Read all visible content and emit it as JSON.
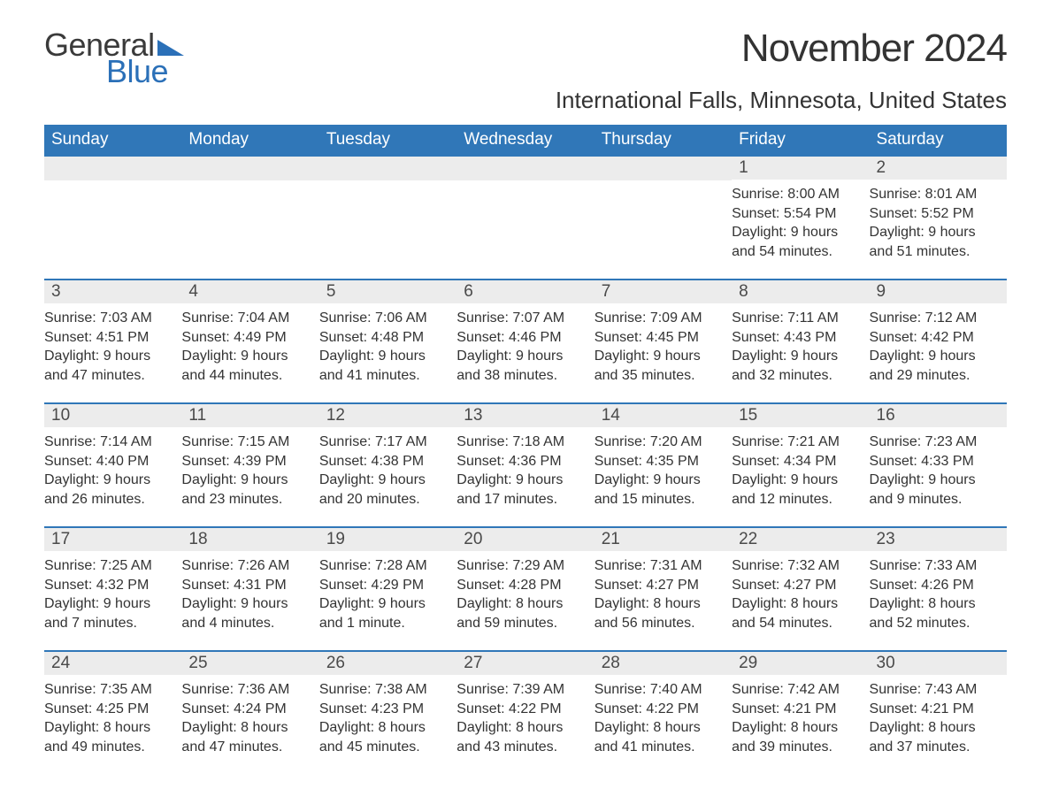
{
  "logo": {
    "text_general": "General",
    "text_blue": "Blue",
    "tri_color": "#2b70b8"
  },
  "title": "November 2024",
  "location": "International Falls, Minnesota, United States",
  "colors": {
    "header_bg": "#3077b8",
    "header_text": "#ffffff",
    "daynum_bg": "#ececec",
    "daynum_text": "#4a4a4a",
    "body_text": "#333333",
    "row_border": "#3077b8"
  },
  "day_headers": [
    "Sunday",
    "Monday",
    "Tuesday",
    "Wednesday",
    "Thursday",
    "Friday",
    "Saturday"
  ],
  "weeks": [
    [
      {
        "day": "",
        "lines": []
      },
      {
        "day": "",
        "lines": []
      },
      {
        "day": "",
        "lines": []
      },
      {
        "day": "",
        "lines": []
      },
      {
        "day": "",
        "lines": []
      },
      {
        "day": "1",
        "lines": [
          "Sunrise: 8:00 AM",
          "Sunset: 5:54 PM",
          "Daylight: 9 hours",
          "and 54 minutes."
        ]
      },
      {
        "day": "2",
        "lines": [
          "Sunrise: 8:01 AM",
          "Sunset: 5:52 PM",
          "Daylight: 9 hours",
          "and 51 minutes."
        ]
      }
    ],
    [
      {
        "day": "3",
        "lines": [
          "Sunrise: 7:03 AM",
          "Sunset: 4:51 PM",
          "Daylight: 9 hours",
          "and 47 minutes."
        ]
      },
      {
        "day": "4",
        "lines": [
          "Sunrise: 7:04 AM",
          "Sunset: 4:49 PM",
          "Daylight: 9 hours",
          "and 44 minutes."
        ]
      },
      {
        "day": "5",
        "lines": [
          "Sunrise: 7:06 AM",
          "Sunset: 4:48 PM",
          "Daylight: 9 hours",
          "and 41 minutes."
        ]
      },
      {
        "day": "6",
        "lines": [
          "Sunrise: 7:07 AM",
          "Sunset: 4:46 PM",
          "Daylight: 9 hours",
          "and 38 minutes."
        ]
      },
      {
        "day": "7",
        "lines": [
          "Sunrise: 7:09 AM",
          "Sunset: 4:45 PM",
          "Daylight: 9 hours",
          "and 35 minutes."
        ]
      },
      {
        "day": "8",
        "lines": [
          "Sunrise: 7:11 AM",
          "Sunset: 4:43 PM",
          "Daylight: 9 hours",
          "and 32 minutes."
        ]
      },
      {
        "day": "9",
        "lines": [
          "Sunrise: 7:12 AM",
          "Sunset: 4:42 PM",
          "Daylight: 9 hours",
          "and 29 minutes."
        ]
      }
    ],
    [
      {
        "day": "10",
        "lines": [
          "Sunrise: 7:14 AM",
          "Sunset: 4:40 PM",
          "Daylight: 9 hours",
          "and 26 minutes."
        ]
      },
      {
        "day": "11",
        "lines": [
          "Sunrise: 7:15 AM",
          "Sunset: 4:39 PM",
          "Daylight: 9 hours",
          "and 23 minutes."
        ]
      },
      {
        "day": "12",
        "lines": [
          "Sunrise: 7:17 AM",
          "Sunset: 4:38 PM",
          "Daylight: 9 hours",
          "and 20 minutes."
        ]
      },
      {
        "day": "13",
        "lines": [
          "Sunrise: 7:18 AM",
          "Sunset: 4:36 PM",
          "Daylight: 9 hours",
          "and 17 minutes."
        ]
      },
      {
        "day": "14",
        "lines": [
          "Sunrise: 7:20 AM",
          "Sunset: 4:35 PM",
          "Daylight: 9 hours",
          "and 15 minutes."
        ]
      },
      {
        "day": "15",
        "lines": [
          "Sunrise: 7:21 AM",
          "Sunset: 4:34 PM",
          "Daylight: 9 hours",
          "and 12 minutes."
        ]
      },
      {
        "day": "16",
        "lines": [
          "Sunrise: 7:23 AM",
          "Sunset: 4:33 PM",
          "Daylight: 9 hours",
          "and 9 minutes."
        ]
      }
    ],
    [
      {
        "day": "17",
        "lines": [
          "Sunrise: 7:25 AM",
          "Sunset: 4:32 PM",
          "Daylight: 9 hours",
          "and 7 minutes."
        ]
      },
      {
        "day": "18",
        "lines": [
          "Sunrise: 7:26 AM",
          "Sunset: 4:31 PM",
          "Daylight: 9 hours",
          "and 4 minutes."
        ]
      },
      {
        "day": "19",
        "lines": [
          "Sunrise: 7:28 AM",
          "Sunset: 4:29 PM",
          "Daylight: 9 hours",
          "and 1 minute."
        ]
      },
      {
        "day": "20",
        "lines": [
          "Sunrise: 7:29 AM",
          "Sunset: 4:28 PM",
          "Daylight: 8 hours",
          "and 59 minutes."
        ]
      },
      {
        "day": "21",
        "lines": [
          "Sunrise: 7:31 AM",
          "Sunset: 4:27 PM",
          "Daylight: 8 hours",
          "and 56 minutes."
        ]
      },
      {
        "day": "22",
        "lines": [
          "Sunrise: 7:32 AM",
          "Sunset: 4:27 PM",
          "Daylight: 8 hours",
          "and 54 minutes."
        ]
      },
      {
        "day": "23",
        "lines": [
          "Sunrise: 7:33 AM",
          "Sunset: 4:26 PM",
          "Daylight: 8 hours",
          "and 52 minutes."
        ]
      }
    ],
    [
      {
        "day": "24",
        "lines": [
          "Sunrise: 7:35 AM",
          "Sunset: 4:25 PM",
          "Daylight: 8 hours",
          "and 49 minutes."
        ]
      },
      {
        "day": "25",
        "lines": [
          "Sunrise: 7:36 AM",
          "Sunset: 4:24 PM",
          "Daylight: 8 hours",
          "and 47 minutes."
        ]
      },
      {
        "day": "26",
        "lines": [
          "Sunrise: 7:38 AM",
          "Sunset: 4:23 PM",
          "Daylight: 8 hours",
          "and 45 minutes."
        ]
      },
      {
        "day": "27",
        "lines": [
          "Sunrise: 7:39 AM",
          "Sunset: 4:22 PM",
          "Daylight: 8 hours",
          "and 43 minutes."
        ]
      },
      {
        "day": "28",
        "lines": [
          "Sunrise: 7:40 AM",
          "Sunset: 4:22 PM",
          "Daylight: 8 hours",
          "and 41 minutes."
        ]
      },
      {
        "day": "29",
        "lines": [
          "Sunrise: 7:42 AM",
          "Sunset: 4:21 PM",
          "Daylight: 8 hours",
          "and 39 minutes."
        ]
      },
      {
        "day": "30",
        "lines": [
          "Sunrise: 7:43 AM",
          "Sunset: 4:21 PM",
          "Daylight: 8 hours",
          "and 37 minutes."
        ]
      }
    ]
  ]
}
